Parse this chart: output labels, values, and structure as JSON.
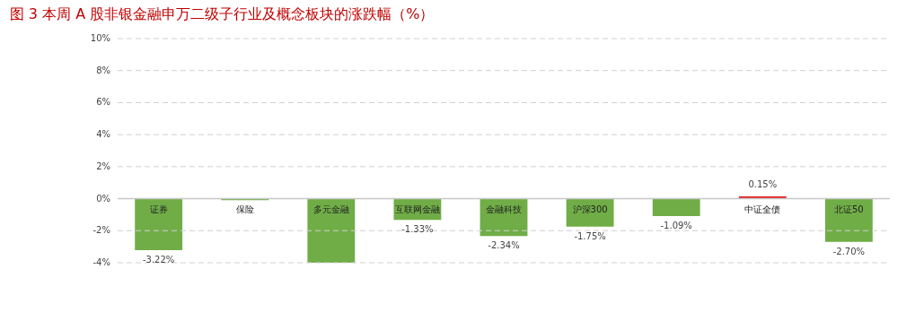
{
  "chart_data": {
    "type": "bar",
    "title": "图 3   本周 A 股非银金融申万二级子行业及概念板块的涨跌幅（%）",
    "categories": [
      "证券",
      "保险",
      "多元金融",
      "互联网金融",
      "金融科技",
      "沪深300",
      null,
      "中证全债",
      "北证50"
    ],
    "values": [
      -3.22,
      -0.1,
      -4.0,
      -1.33,
      -2.34,
      -1.75,
      -1.09,
      0.15,
      -2.7
    ],
    "colors": [
      "#70ad47",
      "#70ad47",
      "#70ad47",
      "#70ad47",
      "#70ad47",
      "#70ad47",
      "#70ad47",
      "#e02020",
      "#70ad47"
    ],
    "value_labels": [
      "-3.22%",
      null,
      null,
      "-1.33%",
      "-2.34%",
      "-1.75%",
      "-1.09%",
      "0.15%",
      "-2.70%"
    ],
    "ylim": [
      -4,
      10
    ],
    "yticks": [
      {
        "value": -4,
        "label": "-4%"
      },
      {
        "value": -2,
        "label": "-2%"
      },
      {
        "value": 0,
        "label": "0%"
      },
      {
        "value": 2,
        "label": "2%"
      },
      {
        "value": 4,
        "label": "4%"
      },
      {
        "value": 6,
        "label": "6%"
      },
      {
        "value": 8,
        "label": "8%"
      },
      {
        "value": 10,
        "label": "10%"
      }
    ],
    "grid": "y"
  }
}
